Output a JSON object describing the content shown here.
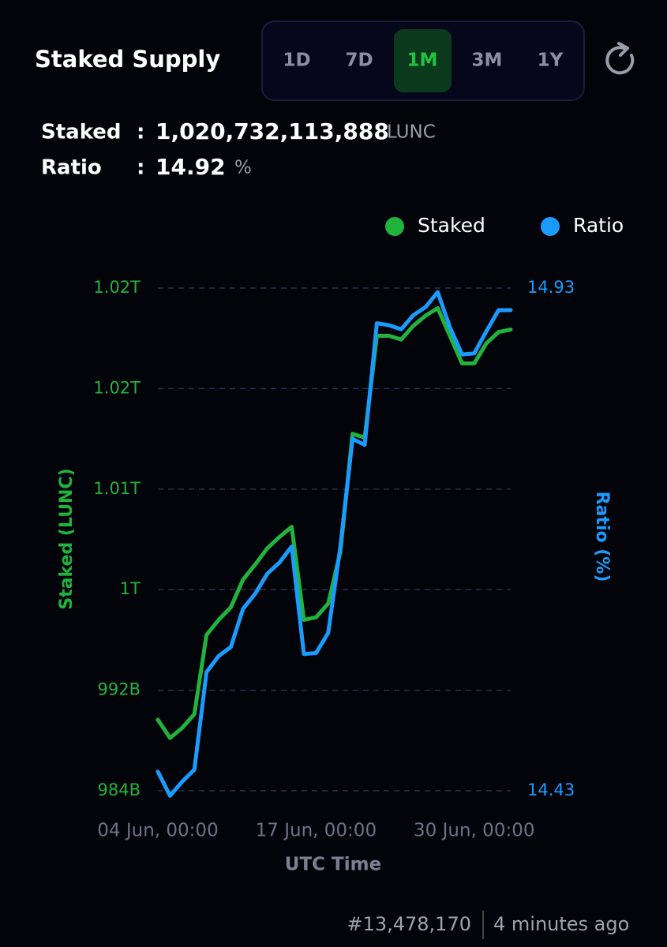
{
  "header": {
    "title": "Staked Supply",
    "periods": [
      "1D",
      "7D",
      "1M",
      "3M",
      "1Y"
    ],
    "active_period": "1M"
  },
  "stats": {
    "staked_label": "Staked",
    "separator": ":",
    "staked_value": "1,020,732,113,888",
    "staked_unit": "LUNC",
    "ratio_label": "Ratio",
    "ratio_value": "14.92",
    "ratio_unit": "%"
  },
  "footer": {
    "block": "#13,478,170",
    "updated": "4 minutes ago"
  },
  "chart_data": {
    "type": "line",
    "x": [
      "04 Jun, 00:00",
      "05 Jun, 00:00",
      "06 Jun, 00:00",
      "07 Jun, 00:00",
      "08 Jun, 00:00",
      "09 Jun, 00:00",
      "10 Jun, 00:00",
      "11 Jun, 00:00",
      "12 Jun, 00:00",
      "13 Jun, 00:00",
      "14 Jun, 00:00",
      "15 Jun, 00:00",
      "16 Jun, 00:00",
      "17 Jun, 00:00",
      "18 Jun, 00:00",
      "19 Jun, 00:00",
      "20 Jun, 00:00",
      "21 Jun, 00:00",
      "22 Jun, 00:00",
      "23 Jun, 00:00",
      "24 Jun, 00:00",
      "25 Jun, 00:00",
      "26 Jun, 00:00",
      "27 Jun, 00:00",
      "28 Jun, 00:00",
      "29 Jun, 00:00",
      "30 Jun, 00:00",
      "01 Jul, 00:00",
      "02 Jul, 00:00",
      "03 Jul, 00:00"
    ],
    "xticks": [
      "04 Jun, 00:00",
      "17 Jun, 00:00",
      "30 Jun, 00:00"
    ],
    "xlabel": "UTC Time",
    "ylabel": "Staked (LUNC)",
    "y2label": "Ratio (%)",
    "series": [
      {
        "name": "Staked",
        "color": "#21b43d",
        "values": [
          989650000000,
          988200000000,
          989000000000,
          990100000000,
          996400000000,
          997600000000,
          998600000000,
          1000800000000,
          1002000000000,
          1003300000000,
          1004200000000,
          1005000000000,
          997600000000,
          997800000000,
          998900000000,
          1003000000000,
          1012400000000,
          1012100000000,
          1020200000000,
          1020200000000,
          1019900000000,
          1021000000000,
          1021800000000,
          1022400000000,
          1020200000000,
          1018000000000,
          1018000000000,
          1019600000000,
          1020500000000,
          1020700000000
        ]
      },
      {
        "name": "Ratio",
        "color": "#1a9cff",
        "axis": "y2",
        "values": [
          14.449,
          14.425,
          14.439,
          14.451,
          14.548,
          14.564,
          14.573,
          14.611,
          14.626,
          14.646,
          14.657,
          14.673,
          14.566,
          14.567,
          14.587,
          14.673,
          14.78,
          14.774,
          14.895,
          14.893,
          14.889,
          14.903,
          14.911,
          14.926,
          14.891,
          14.864,
          14.865,
          14.887,
          14.908,
          14.908
        ]
      }
    ],
    "ylim": [
      984000000000,
      1024000000000
    ],
    "yticks": [
      {
        "value": 984000000000,
        "label": "984B"
      },
      {
        "value": 992000000000,
        "label": "992B"
      },
      {
        "value": 1000000000000,
        "label": "1T"
      },
      {
        "value": 1008000000000,
        "label": "1.01T"
      },
      {
        "value": 1016000000000,
        "label": "1.02T"
      },
      {
        "value": 1024000000000,
        "label": "1.02T"
      }
    ],
    "y2lim": [
      14.43,
      14.93
    ],
    "y2ticks": [
      14.43,
      14.93
    ],
    "grid": true,
    "legend": "top-right"
  }
}
